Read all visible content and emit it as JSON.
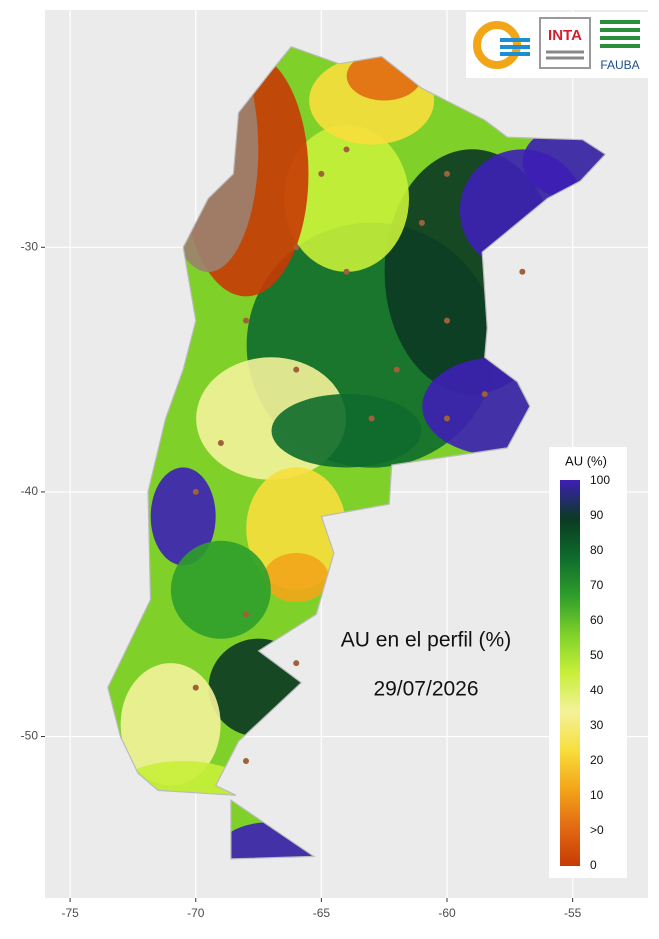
{
  "map": {
    "title": "AU en el perfil (%)",
    "date": "29/07/2026",
    "xlim": [
      -76,
      -52
    ],
    "ylim": [
      -56.6,
      -20.3
    ],
    "xticks": [
      -75,
      -70,
      -65,
      -60,
      -55
    ],
    "yticks": [
      -30,
      -40,
      -50
    ],
    "legend": {
      "title": "AU (%)",
      "labels": [
        100,
        90,
        80,
        70,
        60,
        50,
        40,
        30,
        20,
        10,
        ">0",
        0
      ],
      "colors": [
        "#3d1fb5",
        "#0b3a22",
        "#0e6b2c",
        "#2f9e2a",
        "#7fd12a",
        "#c8ef3a",
        "#f4f29a",
        "#f8de3c",
        "#f3a51a",
        "#e26a12",
        "#c83a06"
      ]
    },
    "logos": [
      "INTA",
      "FAUBA"
    ]
  }
}
